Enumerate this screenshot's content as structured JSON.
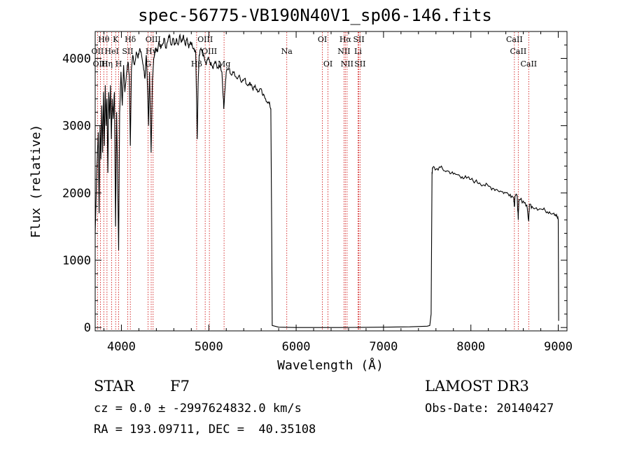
{
  "chart_data": {
    "type": "line",
    "title": "spec-56775-VB190N40V1_sp06-146.fits",
    "xlabel": "Wavelength (Å)",
    "ylabel": "Flux (relative)",
    "xlim": [
      3700,
      9100
    ],
    "ylim": [
      -50,
      4400
    ],
    "xticks": [
      4000,
      5000,
      6000,
      7000,
      8000,
      9000
    ],
    "yticks": [
      0,
      1000,
      2000,
      3000,
      4000
    ],
    "line_color": "#000000",
    "marker_color": "#cc0000",
    "series": [
      {
        "name": "flux",
        "points": [
          [
            3700,
            1400
          ],
          [
            3720,
            2400
          ],
          [
            3735,
            2900
          ],
          [
            3745,
            1700
          ],
          [
            3755,
            3000
          ],
          [
            3765,
            2500
          ],
          [
            3775,
            3300
          ],
          [
            3785,
            2600
          ],
          [
            3795,
            3500
          ],
          [
            3805,
            2700
          ],
          [
            3815,
            3600
          ],
          [
            3825,
            3000
          ],
          [
            3835,
            3400
          ],
          [
            3845,
            2300
          ],
          [
            3855,
            3500
          ],
          [
            3865,
            3100
          ],
          [
            3875,
            3600
          ],
          [
            3885,
            2800
          ],
          [
            3895,
            3400
          ],
          [
            3905,
            3100
          ],
          [
            3920,
            3500
          ],
          [
            3933,
            1500
          ],
          [
            3945,
            3200
          ],
          [
            3955,
            2400
          ],
          [
            3968,
            1150
          ],
          [
            3980,
            3200
          ],
          [
            3995,
            3800
          ],
          [
            4010,
            3300
          ],
          [
            4025,
            3900
          ],
          [
            4040,
            3500
          ],
          [
            4060,
            3800
          ],
          [
            4075,
            3950
          ],
          [
            4090,
            3750
          ],
          [
            4102,
            2700
          ],
          [
            4115,
            3850
          ],
          [
            4130,
            4050
          ],
          [
            4150,
            3900
          ],
          [
            4170,
            4100
          ],
          [
            4190,
            4000
          ],
          [
            4210,
            4150
          ],
          [
            4230,
            4050
          ],
          [
            4250,
            3900
          ],
          [
            4270,
            3700
          ],
          [
            4285,
            4050
          ],
          [
            4300,
            3500
          ],
          [
            4310,
            3000
          ],
          [
            4322,
            3800
          ],
          [
            4340,
            2600
          ],
          [
            4355,
            3700
          ],
          [
            4370,
            4000
          ],
          [
            4390,
            4150
          ],
          [
            4410,
            4100
          ],
          [
            4430,
            4250
          ],
          [
            4450,
            4150
          ],
          [
            4470,
            4200
          ],
          [
            4490,
            4300
          ],
          [
            4510,
            4150
          ],
          [
            4530,
            4250
          ],
          [
            4550,
            4350
          ],
          [
            4570,
            4200
          ],
          [
            4590,
            4300
          ],
          [
            4610,
            4200
          ],
          [
            4630,
            4300
          ],
          [
            4650,
            4200
          ],
          [
            4670,
            4350
          ],
          [
            4690,
            4250
          ],
          [
            4710,
            4350
          ],
          [
            4730,
            4200
          ],
          [
            4750,
            4300
          ],
          [
            4770,
            4150
          ],
          [
            4790,
            4250
          ],
          [
            4810,
            4200
          ],
          [
            4830,
            4150
          ],
          [
            4850,
            4100
          ],
          [
            4860,
            3400
          ],
          [
            4868,
            2800
          ],
          [
            4878,
            3600
          ],
          [
            4890,
            4050
          ],
          [
            4910,
            4150
          ],
          [
            4930,
            4050
          ],
          [
            4950,
            4000
          ],
          [
            4970,
            3900
          ],
          [
            4990,
            4000
          ],
          [
            5010,
            3950
          ],
          [
            5030,
            3900
          ],
          [
            5050,
            3850
          ],
          [
            5070,
            3950
          ],
          [
            5090,
            3900
          ],
          [
            5110,
            3850
          ],
          [
            5130,
            3900
          ],
          [
            5150,
            3800
          ],
          [
            5167,
            3400
          ],
          [
            5172,
            3250
          ],
          [
            5183,
            3500
          ],
          [
            5200,
            3800
          ],
          [
            5230,
            3850
          ],
          [
            5260,
            3750
          ],
          [
            5290,
            3800
          ],
          [
            5320,
            3700
          ],
          [
            5350,
            3750
          ],
          [
            5380,
            3650
          ],
          [
            5410,
            3700
          ],
          [
            5440,
            3600
          ],
          [
            5470,
            3650
          ],
          [
            5500,
            3550
          ],
          [
            5530,
            3600
          ],
          [
            5560,
            3500
          ],
          [
            5590,
            3550
          ],
          [
            5620,
            3450
          ],
          [
            5650,
            3400
          ],
          [
            5680,
            3350
          ],
          [
            5700,
            3300
          ],
          [
            5710,
            3250
          ],
          [
            5720,
            1500
          ],
          [
            5726,
            30
          ],
          [
            5800,
            5
          ],
          [
            6000,
            0
          ],
          [
            6500,
            0
          ],
          [
            7000,
            5
          ],
          [
            7300,
            10
          ],
          [
            7500,
            20
          ],
          [
            7530,
            30
          ],
          [
            7545,
            200
          ],
          [
            7555,
            2300
          ],
          [
            7565,
            2380
          ],
          [
            7600,
            2350
          ],
          [
            7650,
            2380
          ],
          [
            7700,
            2330
          ],
          [
            7750,
            2320
          ],
          [
            7800,
            2280
          ],
          [
            7850,
            2270
          ],
          [
            7900,
            2240
          ],
          [
            7950,
            2220
          ],
          [
            8000,
            2200
          ],
          [
            8050,
            2170
          ],
          [
            8100,
            2150
          ],
          [
            8150,
            2120
          ],
          [
            8200,
            2100
          ],
          [
            8250,
            2070
          ],
          [
            8300,
            2050
          ],
          [
            8350,
            2020
          ],
          [
            8400,
            2000
          ],
          [
            8450,
            1980
          ],
          [
            8490,
            1930
          ],
          [
            8498,
            1800
          ],
          [
            8505,
            1950
          ],
          [
            8530,
            1950
          ],
          [
            8542,
            1600
          ],
          [
            8550,
            1900
          ],
          [
            8600,
            1880
          ],
          [
            8640,
            1820
          ],
          [
            8662,
            1580
          ],
          [
            8670,
            1830
          ],
          [
            8700,
            1800
          ],
          [
            8750,
            1780
          ],
          [
            8800,
            1760
          ],
          [
            8850,
            1740
          ],
          [
            8900,
            1720
          ],
          [
            8950,
            1700
          ],
          [
            8980,
            1680
          ],
          [
            9000,
            1600
          ],
          [
            9005,
            100
          ]
        ]
      }
    ],
    "line_markers": [
      {
        "name": "Hθ",
        "x": 3798,
        "row": 0
      },
      {
        "name": "OII",
        "x": 3727,
        "row": 1
      },
      {
        "name": "OIII",
        "x": 3760,
        "row": 2
      },
      {
        "name": "Hη",
        "x": 3835,
        "row": 2
      },
      {
        "name": "HeI",
        "x": 3889,
        "row": 1
      },
      {
        "name": "K",
        "x": 3934,
        "row": 0
      },
      {
        "name": "SII",
        "x": 4072,
        "row": 1
      },
      {
        "name": "H",
        "x": 3969,
        "row": 2
      },
      {
        "name": "Hδ",
        "x": 4102,
        "row": 0
      },
      {
        "name": "OIII",
        "x": 4363,
        "row": 0
      },
      {
        "name": "Hγ",
        "x": 4341,
        "row": 1
      },
      {
        "name": "G",
        "x": 4305,
        "row": 2
      },
      {
        "name": "OIII",
        "x": 4959,
        "row": 0
      },
      {
        "name": "OIII",
        "x": 5007,
        "row": 1
      },
      {
        "name": "Hβ",
        "x": 4861,
        "row": 2
      },
      {
        "name": "Mg",
        "x": 5175,
        "row": 2
      },
      {
        "name": "Na",
        "x": 5893,
        "row": 1
      },
      {
        "name": "OI",
        "x": 6300,
        "row": 0
      },
      {
        "name": "OI",
        "x": 6364,
        "row": 2
      },
      {
        "name": "Hα",
        "x": 6563,
        "row": 0
      },
      {
        "name": "NII",
        "x": 6548,
        "row": 1
      },
      {
        "name": "NII",
        "x": 6583,
        "row": 2
      },
      {
        "name": "SII",
        "x": 6717,
        "row": 0
      },
      {
        "name": "Li",
        "x": 6708,
        "row": 1
      },
      {
        "name": "SII",
        "x": 6731,
        "row": 2
      },
      {
        "name": "CaII",
        "x": 8498,
        "row": 0
      },
      {
        "name": "CaII",
        "x": 8542,
        "row": 1
      },
      {
        "name": "CaII",
        "x": 8662,
        "row": 2
      }
    ]
  },
  "info": {
    "object_class": "STAR",
    "subclass": "F7",
    "survey": "LAMOST DR3",
    "redshift_line": "cz = 0.0 ± -2997624832.0 km/s",
    "obs_date": "Obs-Date: 20140427",
    "coords": "RA = 193.09711, DEC =  40.35108"
  }
}
